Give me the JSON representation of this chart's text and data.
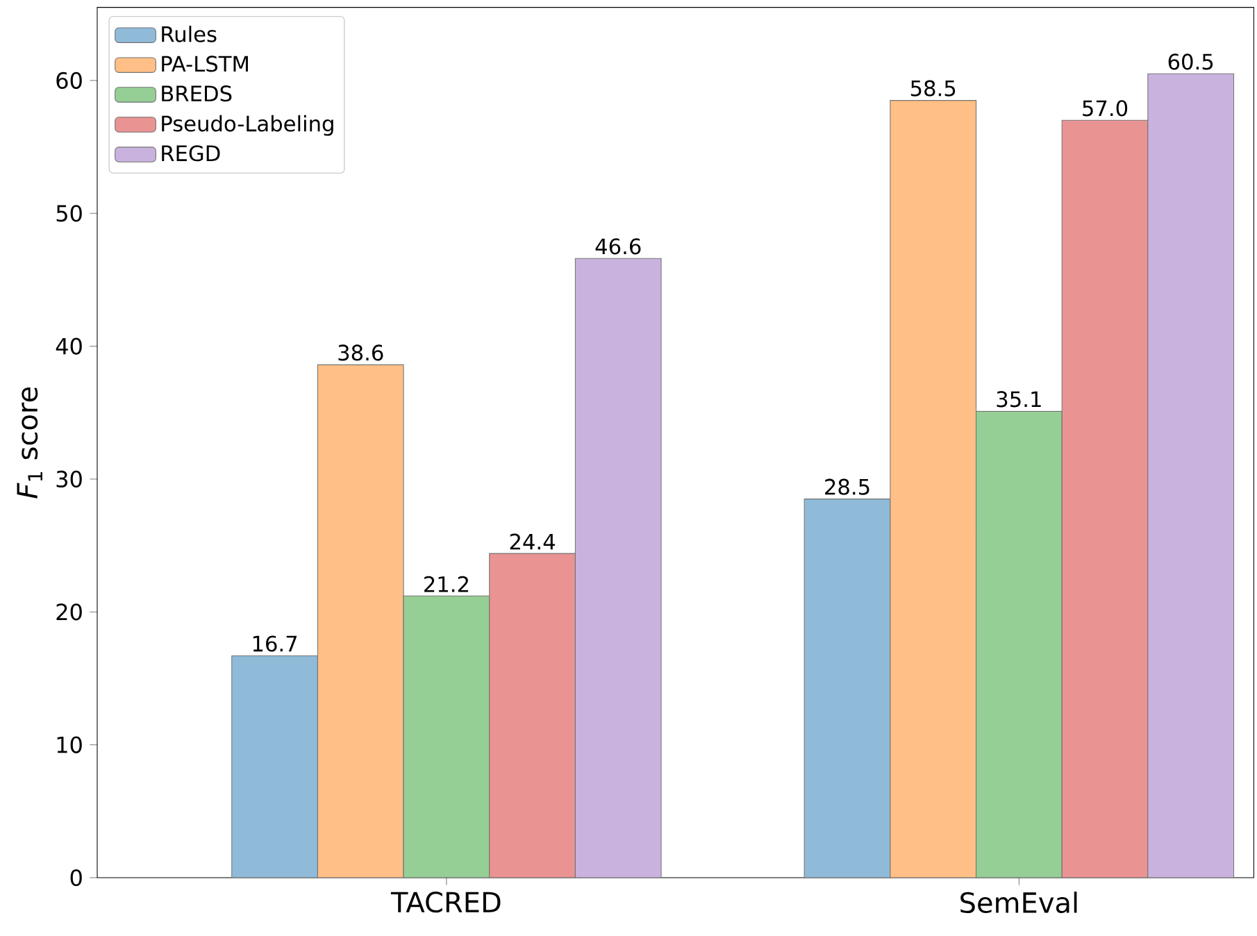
{
  "chart_data": {
    "type": "bar",
    "ylabel": "*F*$_{1}$ score",
    "categories": [
      "TACRED",
      "SemEval"
    ],
    "series": [
      {
        "name": "Rules",
        "color": "#8fbbd9",
        "values": [
          16.7,
          28.5
        ],
        "value_labels": [
          "16.7",
          "28.5"
        ]
      },
      {
        "name": "PA-LSTM",
        "color": "#ffbf86",
        "values": [
          38.6,
          58.5
        ],
        "value_labels": [
          "38.6",
          "58.5"
        ]
      },
      {
        "name": "BREDS",
        "color": "#95cf95",
        "values": [
          21.2,
          35.1
        ],
        "value_labels": [
          "21.2",
          "35.1"
        ]
      },
      {
        "name": "Pseudo-Labeling",
        "color": "#ea9393",
        "values": [
          24.4,
          57
        ],
        "value_labels": [
          "24.4",
          "57.0"
        ]
      },
      {
        "name": "REGD",
        "color": "#c9b3de",
        "values": [
          46.6,
          60.5
        ],
        "value_labels": [
          "46.6",
          "60.5"
        ]
      }
    ],
    "ylim": [
      0,
      65.5
    ],
    "yticks": [
      0,
      10,
      20,
      30,
      40,
      50,
      60
    ],
    "legend": "top left",
    "grid": false
  }
}
